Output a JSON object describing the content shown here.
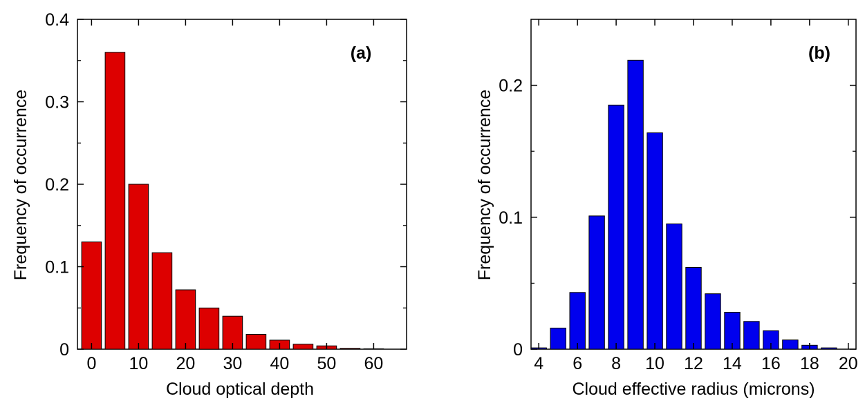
{
  "chart_data": [
    {
      "type": "bar",
      "panel_label": "(a)",
      "xlabel": "Cloud optical depth",
      "ylabel": "Frequency of occurrence",
      "xlim": [
        -3,
        67
      ],
      "ylim": [
        0,
        0.4
      ],
      "x_ticks": [
        0,
        10,
        20,
        30,
        40,
        50,
        60
      ],
      "y_ticks": [
        {
          "value": 0,
          "label": "0"
        },
        {
          "value": 0.1,
          "label": "0.1"
        },
        {
          "value": 0.2,
          "label": "0.2"
        },
        {
          "value": 0.3,
          "label": "0.3"
        },
        {
          "value": 0.4,
          "label": "0.4"
        }
      ],
      "bar_width": 4.2,
      "x": [
        0,
        5,
        10,
        15,
        20,
        25,
        30,
        35,
        40,
        45,
        50,
        55,
        60
      ],
      "values": [
        0.13,
        0.36,
        0.2,
        0.117,
        0.072,
        0.05,
        0.04,
        0.018,
        0.011,
        0.006,
        0.004,
        0.001,
        0.0005
      ],
      "bar_color": "#dd0000",
      "grid": false
    },
    {
      "type": "bar",
      "panel_label": "(b)",
      "xlabel": "Cloud effective radius (microns)",
      "ylabel": "Frequency of occurrence",
      "xlim": [
        3.6,
        20.4
      ],
      "ylim": [
        0,
        0.25
      ],
      "x_ticks": [
        4,
        6,
        8,
        10,
        12,
        14,
        16,
        18,
        20
      ],
      "y_ticks": [
        {
          "value": 0,
          "label": "0"
        },
        {
          "value": 0.1,
          "label": "0.1"
        },
        {
          "value": 0.2,
          "label": "0.2"
        }
      ],
      "bar_width": 0.8,
      "x": [
        4,
        5,
        6,
        7,
        8,
        9,
        10,
        11,
        12,
        13,
        14,
        15,
        16,
        17,
        18,
        19
      ],
      "values": [
        0.001,
        0.016,
        0.043,
        0.101,
        0.185,
        0.219,
        0.164,
        0.095,
        0.062,
        0.042,
        0.028,
        0.021,
        0.014,
        0.007,
        0.003,
        0.001
      ],
      "bar_color": "#0000ee",
      "grid": false
    }
  ]
}
